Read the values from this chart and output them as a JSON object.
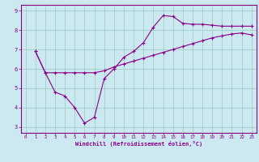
{
  "xlabel": "Windchill (Refroidissement éolien,°C)",
  "ylabel": "",
  "bg_color": "#cce8f0",
  "line_color": "#880088",
  "grid_color": "#99ccbb",
  "xlim": [
    -0.5,
    23.5
  ],
  "ylim": [
    2.7,
    9.3
  ],
  "yticks": [
    3,
    4,
    5,
    6,
    7,
    8,
    9
  ],
  "xticks": [
    0,
    1,
    2,
    3,
    4,
    5,
    6,
    7,
    8,
    9,
    10,
    11,
    12,
    13,
    14,
    15,
    16,
    17,
    18,
    19,
    20,
    21,
    22,
    23
  ],
  "line1_x": [
    1,
    2,
    3,
    4,
    5,
    6,
    7,
    8,
    9,
    10,
    11,
    12,
    13,
    14,
    15,
    16,
    17,
    18,
    19,
    20,
    21,
    22,
    23
  ],
  "line1_y": [
    6.9,
    5.8,
    4.8,
    4.6,
    4.0,
    3.2,
    3.5,
    5.5,
    6.0,
    6.6,
    6.9,
    7.35,
    8.15,
    8.75,
    8.7,
    8.35,
    8.3,
    8.3,
    8.25,
    8.2,
    8.2,
    8.2,
    8.2
  ],
  "line2_x": [
    1,
    2,
    3,
    4,
    5,
    6,
    7,
    8,
    9,
    10,
    11,
    12,
    13,
    14,
    15,
    16,
    17,
    18,
    19,
    20,
    21,
    22,
    23
  ],
  "line2_y": [
    6.9,
    5.8,
    5.8,
    5.8,
    5.8,
    5.8,
    5.8,
    5.9,
    6.1,
    6.25,
    6.4,
    6.55,
    6.7,
    6.85,
    7.0,
    7.15,
    7.3,
    7.45,
    7.6,
    7.7,
    7.8,
    7.85,
    7.75
  ]
}
